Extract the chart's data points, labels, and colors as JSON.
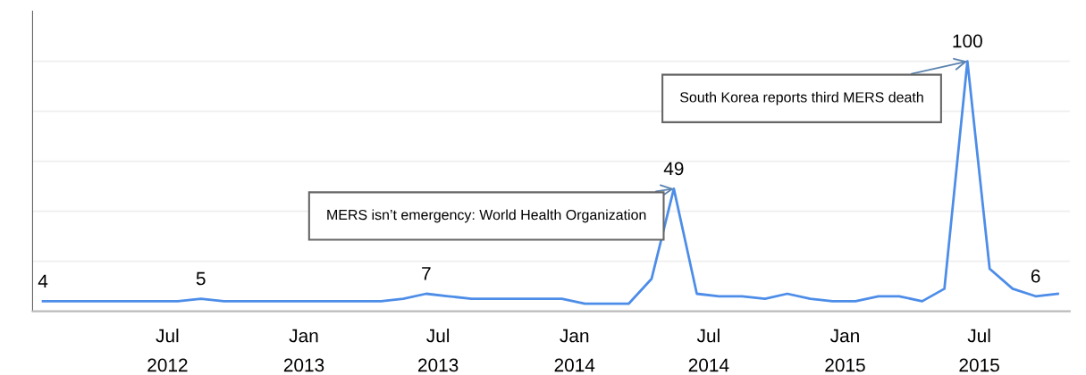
{
  "chart_data": {
    "type": "line",
    "x": [
      "2012-01-15",
      "2012-02-15",
      "2012-03-15",
      "2012-04-15",
      "2012-05-15",
      "2012-06-15",
      "2012-07-15",
      "2012-08-15",
      "2012-09-15",
      "2012-10-15",
      "2012-11-15",
      "2012-12-15",
      "2013-01-15",
      "2013-02-15",
      "2013-03-15",
      "2013-04-15",
      "2013-05-15",
      "2013-06-15",
      "2013-07-15",
      "2013-08-15",
      "2013-09-15",
      "2013-10-15",
      "2013-11-15",
      "2013-12-15",
      "2014-01-15",
      "2014-02-15",
      "2014-03-15",
      "2014-04-15",
      "2014-05-15",
      "2014-06-15",
      "2014-07-15",
      "2014-08-15",
      "2014-09-15",
      "2014-10-15",
      "2014-11-15",
      "2014-12-15",
      "2015-01-15",
      "2015-02-15",
      "2015-03-15",
      "2015-04-15",
      "2015-05-15",
      "2015-06-15",
      "2015-07-15",
      "2015-08-15",
      "2015-09-15",
      "2015-10-15"
    ],
    "series": [
      {
        "color": "#4d8de8",
        "values": [
          4,
          4,
          4,
          4,
          4,
          4,
          4,
          5,
          4,
          4,
          4,
          4,
          4,
          4,
          4,
          4,
          5,
          7,
          6,
          5,
          5,
          5,
          5,
          5,
          3,
          3,
          3,
          13,
          49,
          7,
          6,
          6,
          5,
          7,
          5,
          4,
          4,
          6,
          6,
          4,
          9,
          100,
          17,
          9,
          6,
          7
        ],
        "value_labels": [
          "4",
          null,
          null,
          null,
          null,
          null,
          null,
          "5",
          null,
          null,
          null,
          null,
          null,
          null,
          null,
          null,
          null,
          "7",
          null,
          null,
          null,
          null,
          null,
          null,
          null,
          null,
          null,
          null,
          "49",
          null,
          null,
          null,
          null,
          null,
          null,
          null,
          null,
          null,
          null,
          null,
          null,
          "100",
          null,
          null,
          "6",
          null
        ]
      }
    ],
    "xlim": [
      "2012-01-01",
      "2015-10-31"
    ],
    "xticks": [
      {
        "value": "2012-07-01",
        "label": "Jul\n2012"
      },
      {
        "value": "2013-01-01",
        "label": "Jan\n2013"
      },
      {
        "value": "2013-07-01",
        "label": "Jul\n2013"
      },
      {
        "value": "2014-01-01",
        "label": "Jan\n2014"
      },
      {
        "value": "2014-07-01",
        "label": "Jul\n2014"
      },
      {
        "value": "2015-01-01",
        "label": "Jan\n2015"
      },
      {
        "value": "2015-07-01",
        "label": "Jul\n2015"
      }
    ],
    "ylim": [
      0,
      120
    ],
    "yticks": [
      {
        "value": 20,
        "label": null
      },
      {
        "value": 40,
        "label": null
      },
      {
        "value": 60,
        "label": null
      },
      {
        "value": 80,
        "label": null
      },
      {
        "value": 100,
        "label": null
      }
    ],
    "tick_labels": "x",
    "grid": "y",
    "annotations": [
      {
        "text": "MERS isn’t emergency: World Health Organization",
        "x": "2014-05-15",
        "y": 49
      },
      {
        "text": "South Korea reports third MERS death",
        "x": "2015-06-15",
        "y": 100
      }
    ]
  }
}
